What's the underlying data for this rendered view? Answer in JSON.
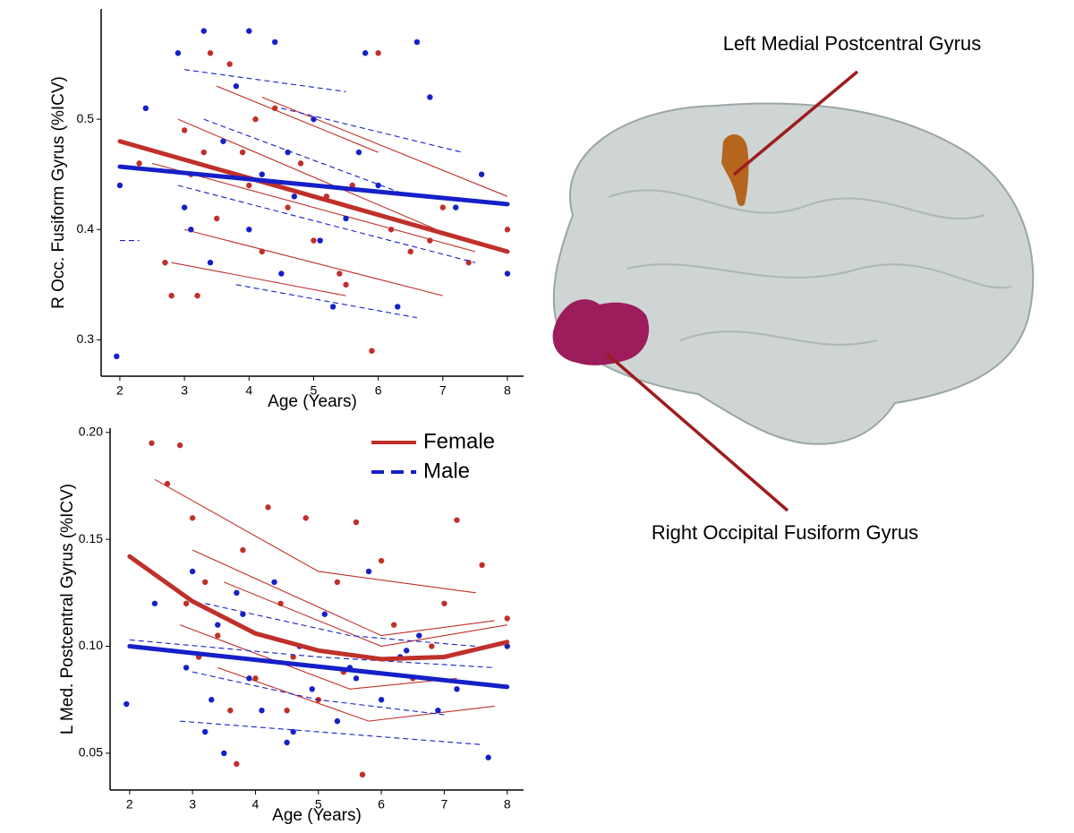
{
  "chart_data": [
    {
      "type": "scatter",
      "xlabel": "Age (Years)",
      "ylabel": "R Occ. Fusiform Gyrus (%ICV)",
      "xlim": [
        1.71,
        8.25
      ],
      "ylim": [
        0.267,
        0.6
      ],
      "xticks": [
        2,
        3,
        4,
        5,
        6,
        7,
        8
      ],
      "yticks": [
        0.3,
        0.4,
        0.5
      ],
      "series": [
        {
          "color": "#c0302a",
          "linestyle": "solid",
          "x": [
            2.3,
            2.7,
            2.8,
            3.0,
            3.1,
            3.2,
            3.4,
            3.5,
            3.7,
            3.9,
            4.0,
            4.2,
            4.4,
            4.6,
            4.8,
            5.0,
            5.2,
            5.4,
            5.6,
            5.9,
            6.0,
            6.2,
            6.5,
            7.0,
            7.4,
            8.0,
            3.3,
            4.1,
            5.5,
            6.8
          ],
          "values": [
            0.46,
            0.37,
            0.34,
            0.49,
            0.45,
            0.34,
            0.56,
            0.41,
            0.55,
            0.47,
            0.44,
            0.38,
            0.51,
            0.42,
            0.46,
            0.39,
            0.43,
            0.36,
            0.44,
            0.29,
            0.56,
            0.4,
            0.38,
            0.42,
            0.37,
            0.4,
            0.47,
            0.5,
            0.35,
            0.39
          ],
          "trajectories": [
            {
              "x": [
                2.9,
                6.9
              ],
              "values": [
                0.5,
                0.4
              ]
            },
            {
              "x": [
                3.5,
                6.0
              ],
              "values": [
                0.53,
                0.47
              ]
            },
            {
              "x": [
                2.5,
                7.5
              ],
              "values": [
                0.46,
                0.38
              ]
            },
            {
              "x": [
                3.0,
                7.0
              ],
              "values": [
                0.4,
                0.34
              ]
            },
            {
              "x": [
                4.2,
                8.0
              ],
              "values": [
                0.52,
                0.43
              ]
            },
            {
              "x": [
                2.8,
                5.5
              ],
              "values": [
                0.37,
                0.34
              ]
            }
          ],
          "fit": {
            "x": [
              2,
              8
            ],
            "values": [
              0.48,
              0.38
            ]
          }
        },
        {
          "color": "#1520c8",
          "linestyle": "dashed",
          "x": [
            1.95,
            2.0,
            2.4,
            2.9,
            3.0,
            3.3,
            3.4,
            3.6,
            3.8,
            4.0,
            4.0,
            4.2,
            4.4,
            4.5,
            4.7,
            5.0,
            5.1,
            5.3,
            5.7,
            5.8,
            6.0,
            6.3,
            6.6,
            6.8,
            7.2,
            7.6,
            8.0,
            3.1,
            4.6,
            5.5
          ],
          "values": [
            0.285,
            0.44,
            0.51,
            0.56,
            0.42,
            0.58,
            0.37,
            0.48,
            0.53,
            0.58,
            0.4,
            0.45,
            0.57,
            0.36,
            0.43,
            0.5,
            0.39,
            0.33,
            0.47,
            0.56,
            0.44,
            0.33,
            0.57,
            0.52,
            0.42,
            0.45,
            0.36,
            0.4,
            0.47,
            0.41
          ],
          "trajectories": [
            {
              "x": [
                2.0,
                2.3
              ],
              "values": [
                0.39,
                0.39
              ]
            },
            {
              "x": [
                3.0,
                5.5
              ],
              "values": [
                0.545,
                0.525
              ]
            },
            {
              "x": [
                3.3,
                6.5
              ],
              "values": [
                0.5,
                0.43
              ]
            },
            {
              "x": [
                2.9,
                7.5
              ],
              "values": [
                0.44,
                0.37
              ]
            },
            {
              "x": [
                4.5,
                7.3
              ],
              "values": [
                0.51,
                0.47
              ]
            },
            {
              "x": [
                3.8,
                6.6
              ],
              "values": [
                0.35,
                0.32
              ]
            }
          ],
          "fit": {
            "x": [
              2,
              8
            ],
            "values": [
              0.457,
              0.423
            ]
          }
        }
      ]
    },
    {
      "type": "scatter",
      "xlabel": "Age (Years)",
      "ylabel": "L Med. Postcentral Gyrus (%ICV)",
      "xlim": [
        1.69,
        8.26
      ],
      "ylim": [
        0.0328,
        0.202
      ],
      "xticks": [
        2,
        3,
        4,
        5,
        6,
        7,
        8
      ],
      "yticks": [
        0.05,
        {
          "value": 0.1,
          "label": "0.10"
        },
        0.15,
        {
          "value": 0.2,
          "label": "0.20"
        }
      ],
      "legend": "upper right",
      "series": [
        {
          "name": "Female",
          "color": "#c0302a",
          "linestyle": "solid",
          "x": [
            2.35,
            2.6,
            2.8,
            2.9,
            3.0,
            3.2,
            3.4,
            3.6,
            3.8,
            4.0,
            4.2,
            4.4,
            4.6,
            4.8,
            5.0,
            5.3,
            5.6,
            5.7,
            6.0,
            6.2,
            6.5,
            7.0,
            7.2,
            7.6,
            8.0,
            3.1,
            3.7,
            4.5,
            5.4,
            6.8
          ],
          "values": [
            0.195,
            0.176,
            0.194,
            0.12,
            0.16,
            0.13,
            0.105,
            0.07,
            0.145,
            0.085,
            0.165,
            0.12,
            0.095,
            0.16,
            0.075,
            0.13,
            0.158,
            0.04,
            0.14,
            0.11,
            0.085,
            0.12,
            0.159,
            0.138,
            0.113,
            0.095,
            0.045,
            0.07,
            0.088,
            0.1
          ],
          "trajectories": [
            {
              "x": [
                2.4,
                5,
                7.5
              ],
              "values": [
                0.178,
                0.135,
                0.125
              ]
            },
            {
              "x": [
                3,
                6,
                7.8
              ],
              "values": [
                0.145,
                0.105,
                0.112
              ]
            },
            {
              "x": [
                2.8,
                5.5,
                7.2
              ],
              "values": [
                0.11,
                0.08,
                0.085
              ]
            },
            {
              "x": [
                3.4,
                5.8,
                7.8
              ],
              "values": [
                0.09,
                0.065,
                0.072
              ]
            },
            {
              "x": [
                3.5,
                6,
                8
              ],
              "values": [
                0.13,
                0.1,
                0.11
              ]
            }
          ],
          "fit": {
            "x": [
              2,
              3,
              4,
              5,
              6,
              7,
              8
            ],
            "values": [
              0.142,
              0.121,
              0.106,
              0.098,
              0.094,
              0.095,
              0.102
            ]
          }
        },
        {
          "name": "Male",
          "color": "#1520c8",
          "linestyle": "dashed",
          "x": [
            1.95,
            2.4,
            2.9,
            3.0,
            3.2,
            3.4,
            3.5,
            3.7,
            3.9,
            4.1,
            4.3,
            4.5,
            4.7,
            4.9,
            5.1,
            5.3,
            5.5,
            5.8,
            6.0,
            6.3,
            6.6,
            6.9,
            7.2,
            7.7,
            8.0,
            3.3,
            3.8,
            4.6,
            5.6,
            6.4
          ],
          "values": [
            0.073,
            0.12,
            0.09,
            0.135,
            0.06,
            0.11,
            0.05,
            0.125,
            0.085,
            0.07,
            0.13,
            0.055,
            0.1,
            0.08,
            0.115,
            0.065,
            0.09,
            0.135,
            0.075,
            0.095,
            0.105,
            0.07,
            0.08,
            0.048,
            0.1,
            0.075,
            0.115,
            0.06,
            0.085,
            0.098
          ],
          "trajectories": [
            {
              "x": [
                2,
                5,
                7.8
              ],
              "values": [
                0.103,
                0.095,
                0.09
              ]
            },
            {
              "x": [
                3,
                5,
                7
              ],
              "values": [
                0.088,
                0.075,
                0.068
              ]
            },
            {
              "x": [
                2.8,
                5,
                7.6
              ],
              "values": [
                0.065,
                0.06,
                0.054
              ]
            },
            {
              "x": [
                3.2,
                5.5,
                7.5
              ],
              "values": [
                0.12,
                0.105,
                0.1
              ]
            }
          ],
          "fit": {
            "x": [
              2,
              8
            ],
            "values": [
              0.1,
              0.081
            ]
          }
        }
      ]
    }
  ],
  "annotations": [
    "Left Medial Postcentral Gyrus",
    "Right Occipital Fusiform Gyrus"
  ]
}
